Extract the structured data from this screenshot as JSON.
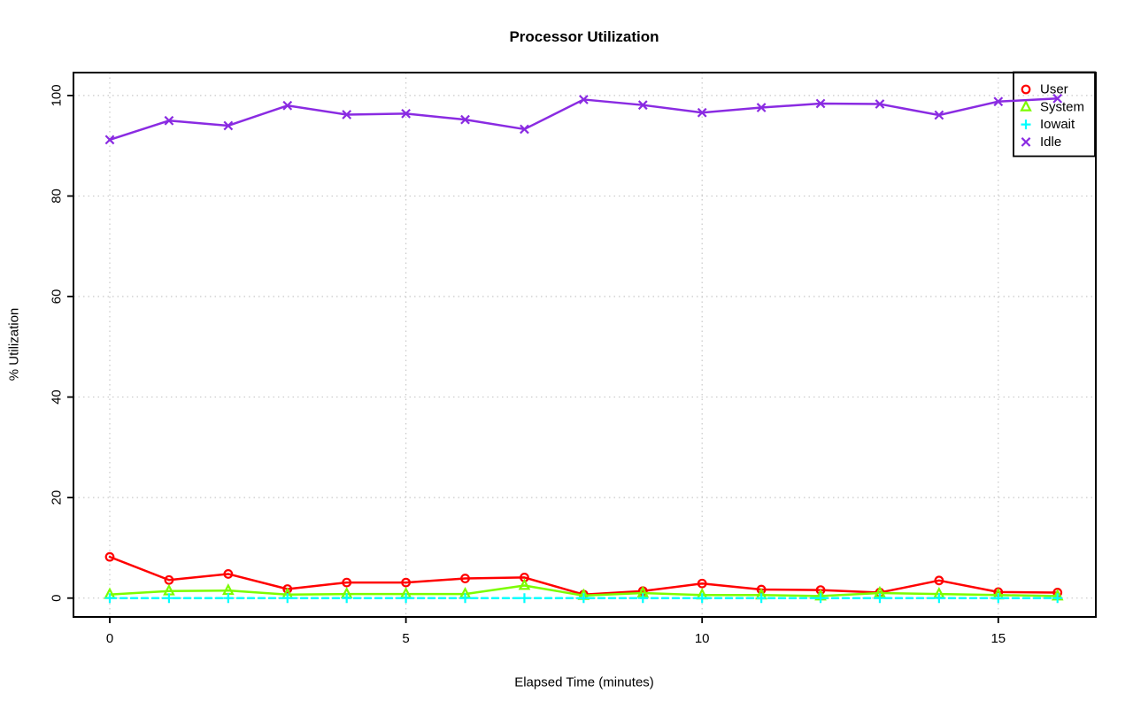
{
  "page": {
    "background": "#ffffff"
  },
  "chart_data": {
    "type": "line",
    "title": "Processor Utilization",
    "xlabel": "Elapsed Time (minutes)",
    "ylabel": "% Utilization",
    "x": [
      0,
      1,
      2,
      3,
      4,
      5,
      6,
      7,
      8,
      9,
      10,
      11,
      12,
      13,
      14,
      15,
      16
    ],
    "x_ticks": [
      0,
      5,
      10,
      15
    ],
    "y_ticks": [
      0,
      20,
      40,
      60,
      80,
      100
    ],
    "xlim": [
      0,
      16
    ],
    "ylim": [
      0,
      100
    ],
    "grid": "dotted",
    "grid_color": "#c8c8c8",
    "frame_color": "#000000",
    "legend_position": "top-right",
    "series": [
      {
        "name": "User",
        "color": "#ff0000",
        "marker": "circle",
        "values": [
          8.2,
          3.6,
          4.8,
          1.8,
          3.1,
          3.1,
          3.9,
          4.1,
          0.7,
          1.4,
          2.9,
          1.7,
          1.6,
          1.1,
          3.5,
          1.2,
          1.1
        ]
      },
      {
        "name": "System",
        "color": "#7cfc00",
        "marker": "triangle",
        "values": [
          0.7,
          1.4,
          1.5,
          0.7,
          0.8,
          0.8,
          0.8,
          2.5,
          0.5,
          1.0,
          0.6,
          0.6,
          0.4,
          1.0,
          0.8,
          0.6,
          0.4
        ]
      },
      {
        "name": "Iowait",
        "color": "#00ffff",
        "marker": "plus",
        "line_style": "dashed",
        "values": [
          0,
          0,
          0,
          0,
          0,
          0,
          0,
          0,
          0,
          0,
          0,
          0,
          0,
          0,
          0,
          0,
          0
        ]
      },
      {
        "name": "Idle",
        "color": "#8a2be2",
        "marker": "x",
        "values": [
          91.2,
          95.0,
          94.0,
          98.0,
          96.2,
          96.4,
          95.2,
          93.3,
          99.2,
          98.1,
          96.6,
          97.6,
          98.4,
          98.3,
          96.1,
          98.8,
          99.4
        ]
      }
    ],
    "legend": {
      "labels": [
        "User",
        "System",
        "Iowait",
        "Idle"
      ]
    }
  }
}
